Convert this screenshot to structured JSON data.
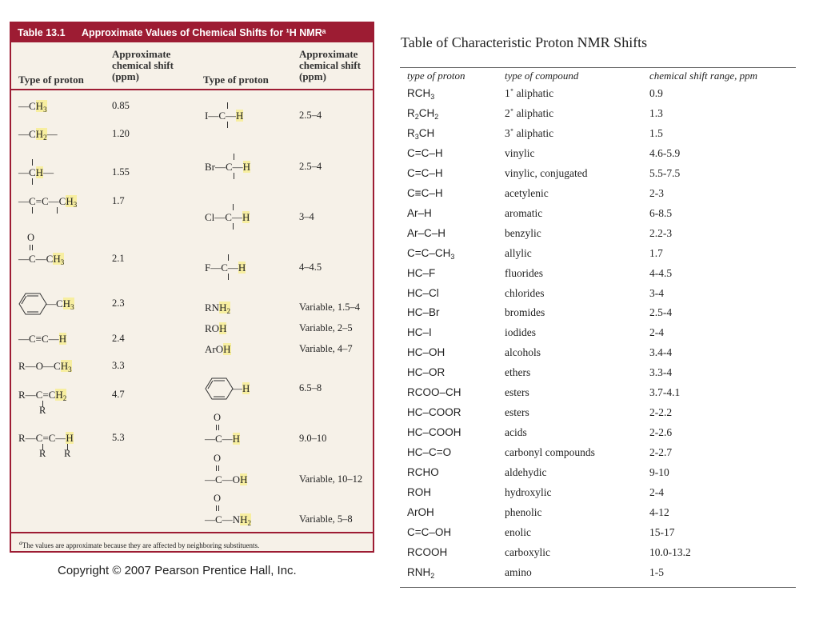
{
  "left_table": {
    "number": "Table 13.1",
    "title": "Approximate Values of Chemical Shifts for ¹H NMRᵃ",
    "col_proton": "Type of proton",
    "col_shift": [
      "Approximate",
      "chemical shift",
      "(ppm)"
    ],
    "highlight_color": "#f7eea0",
    "border_color": "#9d1c33",
    "left_rows": [
      {
        "formula": "—C[H]_3",
        "shift": "0.85"
      },
      {
        "formula": "—C[H]_2—",
        "shift": "1.20"
      },
      {
        "formula": "—C[H]—",
        "shift": "1.55"
      },
      {
        "formula": "—C=C—C[H]_3",
        "shift": "1.7"
      },
      {
        "formula": "—C—C[H]_3",
        "above": "O",
        "shift": "2.1"
      },
      {
        "formula": "—C[H]_3",
        "ring": "benzene",
        "shift": "2.3"
      },
      {
        "formula": "—C≡C—[H]",
        "shift": "2.4"
      },
      {
        "formula": "R—O—C[H]_3",
        "shift": "3.3"
      },
      {
        "formula": "R—C=C[H]_2",
        "below": "R",
        "shift": "4.7"
      },
      {
        "formula": "R—C=C—[H]",
        "below": "R",
        "shift": "5.3"
      }
    ],
    "right_rows": [
      {
        "formula": "I—C—[H]",
        "shift": "2.5–4"
      },
      {
        "formula": "Br—C—[H]",
        "shift": "2.5–4"
      },
      {
        "formula": "Cl—C—[H]",
        "shift": "3–4"
      },
      {
        "formula": "F—C—[H]",
        "shift": "4–4.5"
      },
      {
        "formula": "RN[H]_2",
        "shift": "Variable, 1.5–4"
      },
      {
        "formula": "RO[H]",
        "shift": "Variable, 2–5"
      },
      {
        "formula": "ArO[H]",
        "shift": "Variable, 4–7"
      },
      {
        "formula": "—[H]",
        "ring": "benzene",
        "shift": "6.5–8"
      },
      {
        "formula": "—C—[H]",
        "above": "O",
        "shift": "9.0–10"
      },
      {
        "formula": "—C—O[H]",
        "above": "O",
        "shift": "Variable, 10–12"
      },
      {
        "formula": "—C—N[H]_2",
        "above": "O",
        "shift": "Variable, 5–8"
      }
    ],
    "footnote_mark": "a",
    "footnote": "The values are approximate because they are affected by neighboring substituents."
  },
  "copyright": "Copyright © 2007 Pearson Prentice Hall, Inc.",
  "right_table": {
    "title": "Table of Characteristic Proton NMR Shifts",
    "headers": [
      "type of proton",
      "type of compound",
      "chemical shift range, ppm"
    ],
    "rows": [
      [
        "RCH_3",
        "1˚ aliphatic",
        "0.9"
      ],
      [
        "R_2CH_2",
        "2˚ aliphatic",
        "1.3"
      ],
      [
        "R_3CH",
        "3˚ aliphatic",
        "1.5"
      ],
      [
        "C=C–H",
        "vinylic",
        "4.6-5.9"
      ],
      [
        "C=C–H",
        "vinylic, conjugated",
        "5.5-7.5"
      ],
      [
        "C≡C–H",
        "acetylenic",
        "2-3"
      ],
      [
        "Ar–H",
        "aromatic",
        "6-8.5"
      ],
      [
        "Ar–C–H",
        "benzylic",
        "2.2-3"
      ],
      [
        "C=C–CH_3",
        "allylic",
        "1.7"
      ],
      [
        "HC–F",
        "fluorides",
        "4-4.5"
      ],
      [
        "HC–Cl",
        "chlorides",
        "3-4"
      ],
      [
        "HC–Br",
        "bromides",
        "2.5-4"
      ],
      [
        "HC–I",
        "iodides",
        "2-4"
      ],
      [
        "HC–OH",
        "alcohols",
        "3.4-4"
      ],
      [
        "HC–OR",
        "ethers",
        "3.3-4"
      ],
      [
        "RCOO–CH",
        "esters",
        "3.7-4.1"
      ],
      [
        "HC–COOR",
        "esters",
        "2-2.2"
      ],
      [
        "HC–COOH",
        "acids",
        "2-2.6"
      ],
      [
        "HC–C=O",
        "carbonyl compounds",
        "2-2.7"
      ],
      [
        "RCHO",
        "aldehydic",
        "9-10"
      ],
      [
        "ROH",
        "hydroxylic",
        "2-4"
      ],
      [
        "ArOH",
        "phenolic",
        "4-12"
      ],
      [
        "C=C–OH",
        "enolic",
        "15-17"
      ],
      [
        "RCOOH",
        "carboxylic",
        "10.0-13.2"
      ],
      [
        "RNH_2",
        "amino",
        "1-5"
      ]
    ]
  }
}
